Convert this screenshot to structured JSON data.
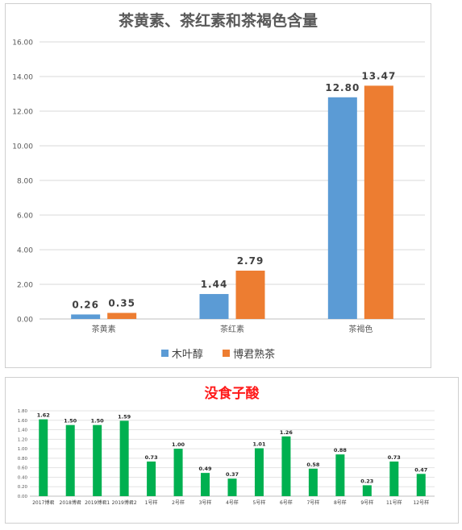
{
  "chart_data": [
    {
      "type": "bar",
      "title": "茶黄素、茶红素和茶褐色含量",
      "categories": [
        "茶黄素",
        "茶红素",
        "茶褐色"
      ],
      "series": [
        {
          "name": "木叶醇",
          "values": [
            0.26,
            1.44,
            12.8
          ],
          "color": "#5b9bd5"
        },
        {
          "name": "博君熟茶",
          "values": [
            0.35,
            2.79,
            13.47
          ],
          "color": "#ed7d31"
        }
      ],
      "data_labels": [
        [
          "0.26",
          "1.44",
          "12.80"
        ],
        [
          "0.35",
          "2.79",
          "13.47"
        ]
      ],
      "ylim": [
        0,
        16
      ],
      "yticks": [
        "0.00",
        "2.00",
        "4.00",
        "6.00",
        "8.00",
        "10.00",
        "12.00",
        "14.00",
        "16.00"
      ],
      "grid": true,
      "legend": "bottom"
    },
    {
      "type": "bar",
      "title": "没食子酸",
      "categories": [
        "2017博君",
        "2018博君",
        "2019博君1",
        "2019博君2",
        "1号样",
        "2号样",
        "3号样",
        "4号样",
        "5号样",
        "6号样",
        "7号样",
        "8号样",
        "9号样",
        "11号样",
        "12号样"
      ],
      "series": [
        {
          "values": [
            1.62,
            1.5,
            1.5,
            1.59,
            0.73,
            1.0,
            0.49,
            0.37,
            1.01,
            1.26,
            0.58,
            0.88,
            0.23,
            0.73,
            0.47
          ],
          "color": "#00b050"
        }
      ],
      "data_labels": [
        "1.62",
        "1.50",
        "1.50",
        "1.59",
        "0.73",
        "1.00",
        "0.49",
        "0.37",
        "1.01",
        "1.26",
        "0.58",
        "0.88",
        "0.23",
        "0.73",
        "0.47"
      ],
      "ylim": [
        0,
        1.8
      ],
      "yticks": [
        "0.00",
        "0.20",
        "0.40",
        "0.60",
        "0.80",
        "1.00",
        "1.20",
        "1.40",
        "1.60",
        "1.80"
      ],
      "grid": true,
      "legend": "none"
    }
  ]
}
